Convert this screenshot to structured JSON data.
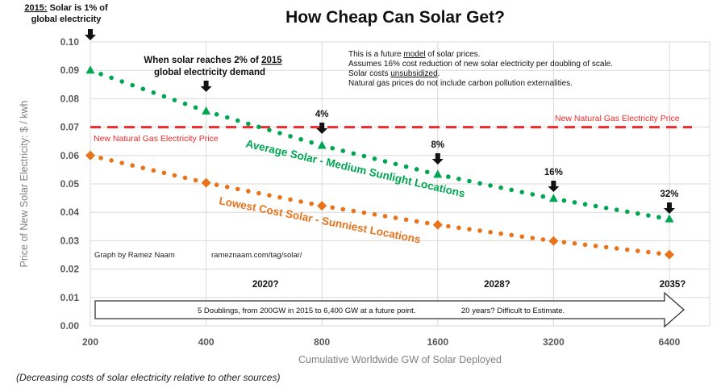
{
  "chart_data": {
    "type": "line",
    "title": "How Cheap Can Solar Get?",
    "xlabel": "Cumulative Worldwide GW of Solar Deployed",
    "ylabel": "Price of New Solar Electricity: $ / kwh",
    "x_scale": "log2",
    "x": [
      200,
      400,
      800,
      1600,
      3200,
      6400
    ],
    "x_tick_labels": [
      "200",
      "400",
      "800",
      "1600",
      "3200",
      "6400"
    ],
    "ylim": [
      0,
      0.1
    ],
    "y_ticks": [
      0.0,
      0.01,
      0.02,
      0.03,
      0.04,
      0.05,
      0.06,
      0.07,
      0.08,
      0.09,
      0.1
    ],
    "y_tick_labels": [
      "0.00",
      "0.01",
      "0.02",
      "0.03",
      "0.04",
      "0.05",
      "0.06",
      "0.07",
      "0.08",
      "0.09",
      "0.10"
    ],
    "grid": true,
    "series": [
      {
        "name": "Average Solar - Medium Sunlight Locations",
        "color": "#00a651",
        "marker": "triangle",
        "values": [
          0.09,
          0.0756,
          0.0635,
          0.0533,
          0.0448,
          0.0376
        ]
      },
      {
        "name": "Lowest Cost Solar - Sunniest Locations",
        "color": "#e8731a",
        "marker": "diamond",
        "values": [
          0.06,
          0.0504,
          0.0423,
          0.0356,
          0.0299,
          0.0251
        ]
      }
    ],
    "reference_line": {
      "name": "New Natural Gas Electricity Price",
      "value": 0.07,
      "color": "#ee2a2a",
      "labels": [
        "New Natural Gas Electricity Price",
        "New Natural Gas Electricity Price"
      ]
    },
    "milestones": [
      {
        "x": 200,
        "label_lines": [
          "2015: Solar is 1% of",
          "global electricity"
        ],
        "underline": "2015:"
      },
      {
        "x": 400,
        "label_lines": [
          "When solar reaches 2% of 2015",
          "global electricity demand"
        ],
        "underline": "2015"
      },
      {
        "x": 800,
        "label_lines": [
          "4%"
        ]
      },
      {
        "x": 1600,
        "label_lines": [
          "8%"
        ]
      },
      {
        "x": 3200,
        "label_lines": [
          "16%"
        ]
      },
      {
        "x": 6400,
        "label_lines": [
          "32%"
        ]
      }
    ],
    "notes": [
      "This is a future model of solar prices.",
      "Assumes 16% cost reduction of new solar electricity per doubling of scale.",
      "Solar costs unsubsidized.",
      "Natural gas prices do not include carbon pollution externalities."
    ],
    "credits": {
      "author": "Graph by Ramez Naam",
      "url": "rameznaam.com/tag/solar/"
    },
    "year_labels": [
      {
        "x": 800,
        "label": "2020?"
      },
      {
        "x": 3200,
        "label": "2028?"
      },
      {
        "x": 6400,
        "label": "2035?"
      }
    ],
    "timeline_arrow_text": [
      "5 Doublings, from 200GW in 2015 to 6,400 GW at a future point.",
      "20 years? Difficult to Estimate."
    ],
    "series_inline_labels": [
      "Average Solar - Medium Sunlight Locations",
      "Lowest Cost Solar - Sunniest Locations"
    ]
  },
  "caption": "(Decreasing costs of solar electricity relative to other sources)"
}
